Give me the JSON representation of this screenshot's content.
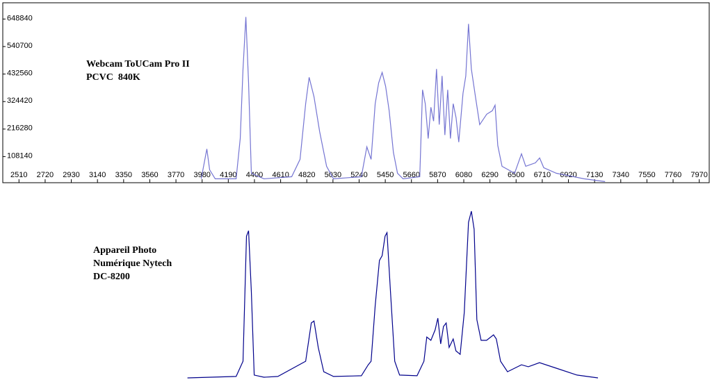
{
  "chart_data": [
    {
      "type": "line",
      "annotations": [
        "Webcam ToUCam Pro II",
        "PCVC  840K"
      ],
      "color": "#7474d2",
      "xlim": [
        2380,
        8050
      ],
      "ylim": [
        0,
        710000
      ],
      "xticks": [
        2510,
        2720,
        2930,
        3140,
        3350,
        3560,
        3770,
        3980,
        4190,
        4400,
        4610,
        4820,
        5030,
        5240,
        5450,
        5660,
        5870,
        6080,
        6290,
        6500,
        6710,
        6920,
        7130,
        7340,
        7550,
        7760,
        7970
      ],
      "yticks": [
        108140,
        216280,
        324420,
        432560,
        540700,
        648840
      ],
      "x": [
        3973,
        4018,
        4040,
        4085,
        4253,
        4286,
        4308,
        4331,
        4353,
        4375,
        4476,
        4699,
        4766,
        4811,
        4839,
        4878,
        4923,
        4979,
        5034,
        5258,
        5302,
        5336,
        5369,
        5397,
        5425,
        5453,
        5481,
        5515,
        5548,
        5593,
        5727,
        5749,
        5771,
        5794,
        5816,
        5838,
        5861,
        5883,
        5906,
        5928,
        5951,
        5973,
        5995,
        6018,
        6040,
        6074,
        6096,
        6118,
        6141,
        6174,
        6208,
        6264,
        6309,
        6331,
        6353,
        6387,
        6488,
        6543,
        6577,
        6655,
        6689,
        6722,
        6823,
        7046,
        7214
      ],
      "values": [
        20800,
        138200,
        56300,
        20800,
        20800,
        179100,
        452500,
        657000,
        397900,
        42600,
        20800,
        29000,
        97200,
        316000,
        419800,
        343200,
        206500,
        69900,
        20800,
        29000,
        146400,
        97200,
        316000,
        397900,
        438900,
        384200,
        288400,
        124500,
        42600,
        20800,
        29000,
        370600,
        316000,
        179100,
        302100,
        247400,
        452500,
        233800,
        425200,
        192800,
        370600,
        179100,
        316000,
        261100,
        165000,
        356900,
        425200,
        629700,
        452500,
        343200,
        233800,
        274700,
        288400,
        310300,
        151800,
        69900,
        42600,
        119100,
        69900,
        83600,
        102700,
        64500,
        42600,
        20800,
        9800
      ]
    },
    {
      "type": "line",
      "annotations": [
        "Appareil Photo",
        "Numérique Nytech",
        "DC-8200"
      ],
      "color": "#00008b",
      "xlim": [
        2380,
        8050
      ],
      "ylim": [
        0,
        100
      ],
      "x": [
        3862,
        4253,
        4308,
        4336,
        4353,
        4375,
        4398,
        4476,
        4588,
        4811,
        4856,
        4878,
        4912,
        4956,
        5034,
        5258,
        5313,
        5336,
        5369,
        5403,
        5425,
        5448,
        5464,
        5492,
        5526,
        5565,
        5705,
        5760,
        5783,
        5816,
        5850,
        5872,
        5895,
        5917,
        5939,
        5962,
        5995,
        6017,
        6051,
        6084,
        6118,
        6141,
        6163,
        6185,
        6219,
        6263,
        6319,
        6341,
        6375,
        6431,
        6543,
        6598,
        6688,
        6822,
        6989,
        7157
      ],
      "values": [
        0.4,
        1.2,
        9.8,
        80.4,
        83.5,
        49,
        2,
        0.8,
        1.2,
        9.8,
        31.4,
        32.5,
        17.6,
        3.9,
        1.2,
        1.6,
        7.8,
        9.8,
        41.2,
        66.7,
        69.4,
        80.4,
        82.4,
        49,
        9.8,
        2,
        1.6,
        9.8,
        23.5,
        21.6,
        27.5,
        34.1,
        19.6,
        29.4,
        31.4,
        17.6,
        22.4,
        15.7,
        13.7,
        37.3,
        88.2,
        94.5,
        84.3,
        33.3,
        21.6,
        21.6,
        24.7,
        22.4,
        9.8,
        3.9,
        7.8,
        6.7,
        9,
        5.9,
        2,
        0.4
      ]
    }
  ]
}
